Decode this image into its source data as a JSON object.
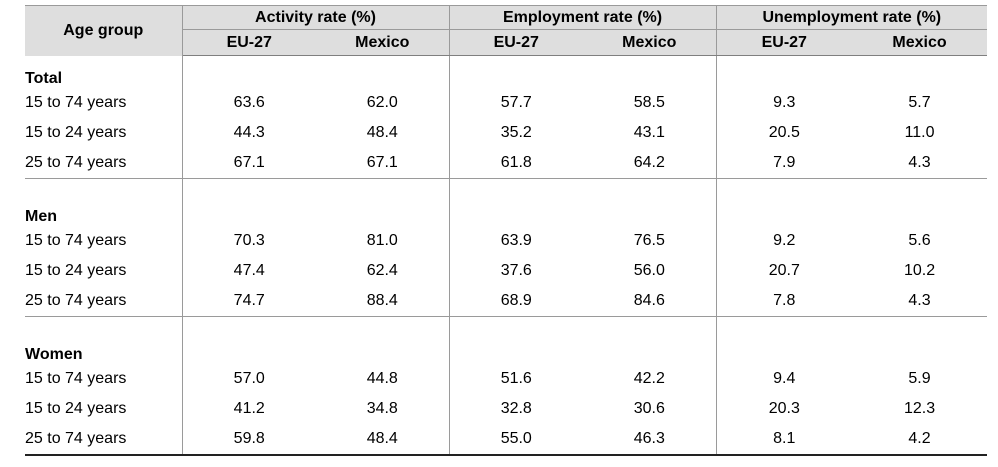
{
  "header": {
    "age_group": "Age group",
    "groups": [
      "Activity rate (%)",
      "Employment rate (%)",
      "Unemployment rate (%)"
    ],
    "subcols": [
      "EU-27",
      "Mexico"
    ]
  },
  "sections": [
    {
      "title": "Total",
      "rows": [
        {
          "label": "15 to 74 years",
          "values": [
            "63.6",
            "62.0",
            "57.7",
            "58.5",
            "9.3",
            "5.7"
          ]
        },
        {
          "label": "15 to 24 years",
          "values": [
            "44.3",
            "48.4",
            "35.2",
            "43.1",
            "20.5",
            "11.0"
          ]
        },
        {
          "label": "25 to 74 years",
          "values": [
            "67.1",
            "67.1",
            "61.8",
            "64.2",
            "7.9",
            "4.3"
          ]
        }
      ]
    },
    {
      "title": "Men",
      "rows": [
        {
          "label": "15 to 74 years",
          "values": [
            "70.3",
            "81.0",
            "63.9",
            "76.5",
            "9.2",
            "5.6"
          ]
        },
        {
          "label": "15 to 24 years",
          "values": [
            "47.4",
            "62.4",
            "37.6",
            "56.0",
            "20.7",
            "10.2"
          ]
        },
        {
          "label": "25 to 74 years",
          "values": [
            "74.7",
            "88.4",
            "68.9",
            "84.6",
            "7.8",
            "4.3"
          ]
        }
      ]
    },
    {
      "title": "Women",
      "rows": [
        {
          "label": "15 to 74 years",
          "values": [
            "57.0",
            "44.8",
            "51.6",
            "42.2",
            "9.4",
            "5.9"
          ]
        },
        {
          "label": "15 to 24 years",
          "values": [
            "41.2",
            "34.8",
            "32.8",
            "30.6",
            "20.3",
            "12.3"
          ]
        },
        {
          "label": "25 to 74 years",
          "values": [
            "59.8",
            "48.4",
            "55.0",
            "46.3",
            "8.1",
            "4.2"
          ]
        }
      ]
    }
  ]
}
